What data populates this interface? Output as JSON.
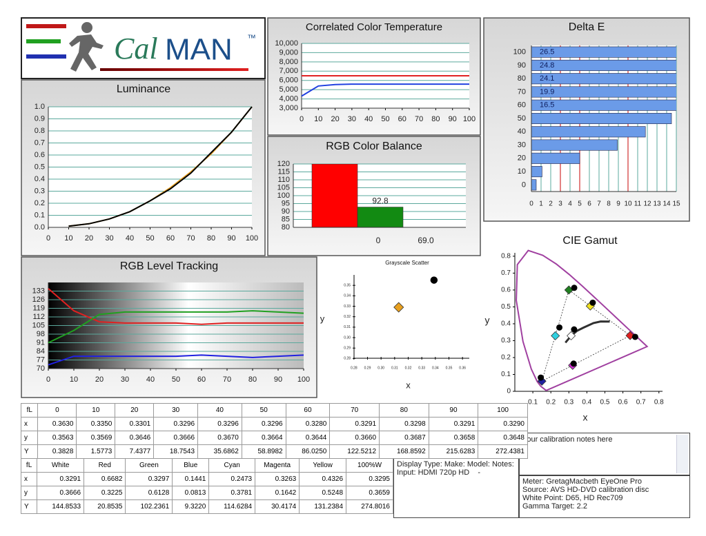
{
  "logo": {
    "italic": "Cal",
    "text": "MAN",
    "mark": "™"
  },
  "chart_data": [
    {
      "type": "line",
      "title": "Luminance",
      "x": [
        10,
        20,
        30,
        40,
        50,
        60,
        70,
        80,
        90,
        100
      ],
      "xlim": [
        0,
        100
      ],
      "xticks": [
        0,
        10,
        20,
        30,
        40,
        50,
        60,
        70,
        80,
        90,
        100
      ],
      "ylim": [
        0,
        1
      ],
      "yticks": [
        {
          "value": 0,
          "label": "0.0"
        },
        0.1,
        0.2,
        0.3,
        0.4,
        0.5,
        0.6,
        0.7,
        0.8,
        0.9,
        {
          "value": 1,
          "label": "1.0"
        }
      ],
      "grid": true,
      "grid_color": "#5aa89c",
      "series": [
        {
          "color": "#e8a020",
          "values": [
            0.01,
            0.03,
            0.07,
            0.13,
            0.22,
            0.33,
            0.46,
            0.61,
            0.79,
            1.0
          ]
        },
        {
          "color": "#000000",
          "values": [
            0.01,
            0.03,
            0.07,
            0.13,
            0.22,
            0.32,
            0.45,
            0.62,
            0.79,
            1.0
          ]
        }
      ]
    },
    {
      "type": "line",
      "title": "Correlated Color Temperature",
      "x": [
        0,
        10,
        20,
        30,
        40,
        50,
        60,
        70,
        80,
        90,
        100
      ],
      "xlim": [
        0,
        100
      ],
      "xticks": [
        0,
        10,
        20,
        30,
        40,
        50,
        60,
        70,
        80,
        90,
        100
      ],
      "ylim": [
        3000,
        10000
      ],
      "yticks": [
        {
          "value": 3000,
          "label": "3,000"
        },
        {
          "value": 4000,
          "label": "4,000"
        },
        {
          "value": 5000,
          "label": "5,000"
        },
        {
          "value": 6000,
          "label": "6,000"
        },
        {
          "value": 7000,
          "label": "7,000"
        },
        {
          "value": 8000,
          "label": "8,000"
        },
        {
          "value": 9000,
          "label": "9,000"
        },
        {
          "value": 10000,
          "label": "10,000"
        }
      ],
      "grid": true,
      "grid_color": "#5aa89c",
      "series": [
        {
          "color": "#e02020",
          "values": [
            6500,
            6500,
            6500,
            6500,
            6500,
            6500,
            6500,
            6500,
            6500,
            6500,
            6500
          ]
        },
        {
          "color": "#2040e0",
          "values": [
            4300,
            5400,
            5550,
            5600,
            5600,
            5600,
            5600,
            5600,
            5600,
            5600,
            5600
          ]
        }
      ]
    },
    {
      "type": "hbar",
      "title": "Delta E",
      "categories": [
        0,
        10,
        20,
        30,
        40,
        50,
        60,
        70,
        80,
        90,
        100
      ],
      "values": [
        0.5,
        1.1,
        5.0,
        8.9,
        11.8,
        14.5,
        16.5,
        19.9,
        24.1,
        24.8,
        26.5
      ],
      "value_labels": [
        null,
        null,
        null,
        null,
        null,
        null,
        "16.5",
        "19.9",
        "24.1",
        "24.8",
        "26.5"
      ],
      "color": "#6b9be8",
      "xlim": [
        0,
        15
      ],
      "xticks": [
        0,
        1,
        2,
        3,
        4,
        5,
        6,
        7,
        8,
        9,
        10,
        11,
        12,
        13,
        14,
        15
      ],
      "grid": true,
      "grid_color": "#5aa89c",
      "reference_lines": [
        3,
        5,
        10
      ],
      "reference_color": "#d03030"
    },
    {
      "type": "bar",
      "title": "RGB Color Balance",
      "values": [
        120,
        92.8,
        69.0
      ],
      "value_labels": [
        null,
        "92.8",
        "69.0"
      ],
      "colors": [
        "#ff0000",
        "#128a12",
        "#2020c0"
      ],
      "annotations": [
        "0"
      ],
      "ylim": [
        80,
        120
      ],
      "yticks": [
        80,
        85,
        90,
        95,
        100,
        105,
        110,
        115,
        120
      ],
      "grid": true,
      "grid_color": "#5aa89c"
    },
    {
      "type": "line",
      "title": "RGB Level Tracking",
      "x": [
        0,
        10,
        20,
        30,
        40,
        50,
        60,
        70,
        80,
        90,
        100
      ],
      "xlim": [
        0,
        100
      ],
      "xticks": [
        0,
        10,
        20,
        30,
        40,
        50,
        60,
        70,
        80,
        90,
        100
      ],
      "ylim": [
        70,
        140
      ],
      "yticks": [
        70,
        77,
        84,
        91,
        98,
        105,
        112,
        119,
        126,
        133
      ],
      "grid": true,
      "grid_color": "#5aa89c",
      "series": [
        {
          "color": "#e02020",
          "values": [
            135,
            117,
            108,
            107,
            107,
            107,
            106,
            107,
            107,
            107,
            107
          ]
        },
        {
          "color": "#20a020",
          "values": [
            91,
            101,
            114,
            116,
            116,
            116,
            116,
            116,
            117,
            116,
            115
          ]
        },
        {
          "color": "#2020e0",
          "values": [
            73,
            80,
            80,
            80,
            80,
            80,
            81,
            80,
            79,
            80,
            81
          ]
        }
      ]
    },
    {
      "type": "scatter",
      "title": "Grayscale Scatter",
      "xlabel": "x",
      "ylabel": "y",
      "xlim": [
        0.275,
        0.365
      ],
      "xticks": [
        0.28,
        0.29,
        {
          "value": 0.3,
          "label": "0.30"
        },
        0.31,
        0.32,
        0.33,
        0.34,
        0.35,
        0.36
      ],
      "ylim": [
        0.275,
        0.36
      ],
      "yticks": [
        0.28,
        0.29,
        {
          "value": 0.3,
          "label": "0.30"
        },
        0.31,
        0.32,
        0.33,
        0.34,
        0.35
      ],
      "series": [
        {
          "marker": "diamond",
          "color": "#e8a020",
          "x": [
            0.313
          ],
          "values": [
            0.329
          ]
        },
        {
          "marker": "circle",
          "color": "#000000",
          "x": [
            0.339
          ],
          "values": [
            0.355
          ]
        }
      ]
    },
    {
      "type": "cie",
      "title": "CIE Gamut",
      "xlabel": "x",
      "ylabel": "y",
      "xlim": [
        0,
        0.82
      ],
      "xticks": [
        0.1,
        0.2,
        0.3,
        0.4,
        0.5,
        0.6,
        0.7,
        0.8
      ],
      "ylim": [
        0,
        0.82
      ],
      "yticks": [
        0,
        0.1,
        0.2,
        0.3,
        0.4,
        0.5,
        0.6,
        0.7,
        0.8
      ],
      "locus": {
        "color": "#a040a0",
        "x": [
          0.1741,
          0.144,
          0.1241,
          0.0913,
          0.0454,
          0.0082,
          0.0139,
          0.0743,
          0.1547,
          0.2296,
          0.3016,
          0.3731,
          0.4441,
          0.5125,
          0.5752,
          0.627,
          0.6658,
          0.7347,
          0.1741
        ],
        "values": [
          0.005,
          0.0297,
          0.0578,
          0.1327,
          0.295,
          0.5384,
          0.7502,
          0.8338,
          0.8059,
          0.7543,
          0.6923,
          0.6245,
          0.5547,
          0.4866,
          0.4242,
          0.3725,
          0.334,
          0.2653,
          0.005
        ]
      },
      "planckian": {
        "color": "#303030",
        "x": [
          0.2807,
          0.3127,
          0.3457,
          0.3805,
          0.4369,
          0.4764,
          0.5267
        ],
        "values": [
          0.2884,
          0.329,
          0.3586,
          0.3768,
          0.4041,
          0.4137,
          0.4133
        ]
      },
      "series": [
        {
          "marker": "diamond",
          "colors": [
            "#ffffff",
            "#e02020",
            "#208020",
            "#2020a0",
            "#30d0e0",
            "#d030d0",
            "#f0e020"
          ],
          "x": [
            0.3127,
            0.64,
            0.3,
            0.15,
            0.225,
            0.321,
            0.419
          ],
          "values": [
            0.329,
            0.33,
            0.6,
            0.06,
            0.329,
            0.154,
            0.505
          ]
        },
        {
          "marker": "circle",
          "color": "#000000",
          "x": [
            0.3291,
            0.6682,
            0.3297,
            0.1441,
            0.2473,
            0.3263,
            0.4326
          ],
          "values": [
            0.3666,
            0.3225,
            0.6128,
            0.0813,
            0.3781,
            0.1642,
            0.5248
          ]
        }
      ]
    }
  ],
  "tables": [
    {
      "header": [
        "fL",
        "0",
        "10",
        "20",
        "30",
        "40",
        "50",
        "60",
        "70",
        "80",
        "90",
        "100"
      ],
      "rows": [
        [
          "x",
          "0.3630",
          "0.3350",
          "0.3301",
          "0.3296",
          "0.3296",
          "0.3296",
          "0.3280",
          "0.3291",
          "0.3298",
          "0.3291",
          "0.3290"
        ],
        [
          "y",
          "0.3563",
          "0.3569",
          "0.3646",
          "0.3666",
          "0.3670",
          "0.3664",
          "0.3644",
          "0.3660",
          "0.3687",
          "0.3658",
          "0.3648"
        ],
        [
          "Y",
          "0.3828",
          "1.5773",
          "7.4377",
          "18.7543",
          "35.6862",
          "58.8982",
          "86.0250",
          "122.5212",
          "168.8592",
          "215.6283",
          "272.4381"
        ]
      ]
    },
    {
      "header": [
        "fL",
        "White",
        "Red",
        "Green",
        "Blue",
        "Cyan",
        "Magenta",
        "Yellow",
        "100%W"
      ],
      "rows": [
        [
          "x",
          "0.3291",
          "0.6682",
          "0.3297",
          "0.1441",
          "0.2473",
          "0.3263",
          "0.4326",
          "0.3295"
        ],
        [
          "y",
          "0.3666",
          "0.3225",
          "0.6128",
          "0.0813",
          "0.3781",
          "0.1642",
          "0.5248",
          "0.3659"
        ],
        [
          "Y",
          "144.8533",
          "20.8535",
          "102.2361",
          "9.3220",
          "114.6284",
          "30.4174",
          "131.2384",
          "274.8016"
        ]
      ]
    }
  ],
  "display_info": [
    "Display Type: Make: Model: Notes:",
    "Input: HDMI 720p HD    -"
  ],
  "notes": "Your calibration notes here",
  "meter_info": [
    "Meter: GretagMacbeth EyeOne Pro",
    "Source: AVS HD-DVD calibration disc",
    "White Point: D65, HD Rec709",
    "Gamma Target: 2.2"
  ]
}
